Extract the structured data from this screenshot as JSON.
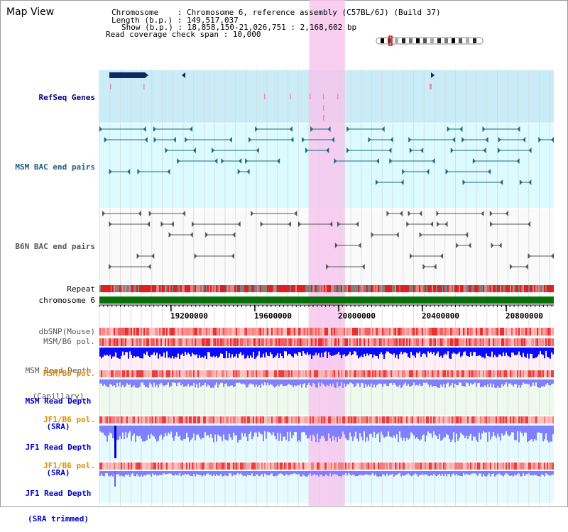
{
  "title": "Map View",
  "info": {
    "chromosome": "Chromosome    : Chromosome 6, reference assembly (C57BL/6J) (Build 37)",
    "length": "Length (b.p.) : 149,517,037",
    "show": "Show (b.p.) : 18,858,150-21,026,751 : 2,168,602 bp",
    "coverage": "Read coverage check span : 10,000"
  },
  "tracks": {
    "refseq": "RefSeq Genes",
    "msm_bac": "MSM BAC end pairs",
    "b6n_bac": "B6N BAC end pairs",
    "repeat": "Repeat",
    "chromosome": "chromosome 6",
    "dbsnp": "dbSNP(Mouse)",
    "msm_b6_pol_1": "MSM/B6 pol.",
    "msm_depth_cap_1": "MSM Read Depth",
    "msm_depth_cap_2": "(Capillary)",
    "msm_b6_pol_2": "MSM/B6 pol.",
    "msm_depth_sra_1": "MSM Read Depth",
    "msm_depth_sra_2": "(SRA)",
    "jf1_b6_pol_1": "JF1/B6 pol.",
    "jf1_depth_sra_1": "JF1 Read Depth",
    "jf1_depth_sra_2": "(SRA)",
    "jf1_b6_pol_2": "JF1/B6 pol.",
    "jf1_depth_trim_1": "JF1 Read Depth",
    "jf1_depth_trim_2": "(SRA trimmed)"
  },
  "axis": {
    "ticks": [
      "19200000",
      "19600000",
      "20000000",
      "20400000",
      "20800000"
    ],
    "tick_values": [
      19200000,
      19600000,
      20000000,
      20400000,
      20800000
    ],
    "range": [
      18858150,
      21026751
    ]
  },
  "highlight_region": [
    19860000,
    20030000
  ],
  "colors": {
    "refseq_label": "#00008b",
    "msm_bac_label": "#1a6080",
    "b6n_bac_label": "#555555",
    "orange_label": "#e08a00",
    "blue_label": "#0000cc",
    "highlight": "#f7c6ee",
    "refseq_bg": "#c9ecf8",
    "msm_bg": "#dcfbff",
    "b6n_bg": "#fafafa",
    "chromosome_bar": "#087008",
    "depth_blue": "#0a0aff",
    "depth_light": "#8080ff"
  }
}
